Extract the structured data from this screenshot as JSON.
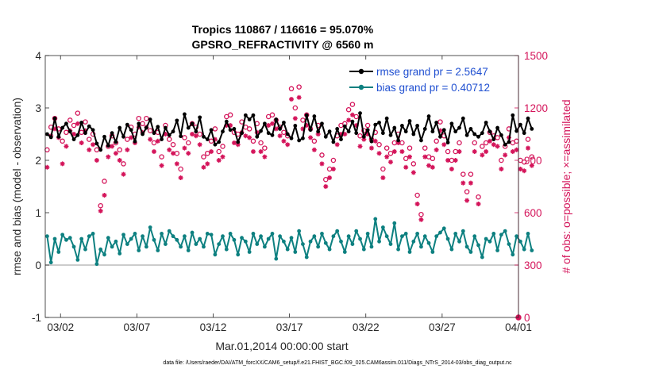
{
  "chart_data": {
    "type": "line",
    "title": "Tropics 110867 / 116616 = 95.070%",
    "subtitle": "GPSRO_REFRACTIVITY @ 6560 m",
    "xlabel": "Mar.01,2014 00:00:00 start",
    "ylabel_left": "rmse and bias (model - observation)",
    "ylabel_right": "# of obs: o=possible; ×=assimilated",
    "footer": "data file: /Users/raeder/DAI/ATM_forcXX/CAM6_setup/f.e21.FHIST_BGC.f09_025.CAM6assim.011/Diags_NTrS_2014-03/obs_diag_output.nc",
    "xlim": [
      0,
      31
    ],
    "ylim_left": [
      -1,
      4
    ],
    "ylim_right": [
      0,
      1500
    ],
    "x_ticks": [
      {
        "value": 1,
        "label": "03/02"
      },
      {
        "value": 6,
        "label": "03/07"
      },
      {
        "value": 11,
        "label": "03/12"
      },
      {
        "value": 16,
        "label": "03/17"
      },
      {
        "value": 21,
        "label": "03/22"
      },
      {
        "value": 26,
        "label": "03/27"
      },
      {
        "value": 31,
        "label": "04/01"
      }
    ],
    "y_ticks_left": [
      -1,
      0,
      1,
      2,
      3,
      4
    ],
    "y_ticks_right": [
      0,
      300,
      600,
      900,
      1200,
      1500
    ],
    "legend": [
      {
        "label": "rmse grand pr = 2.5647",
        "color": "#000000"
      },
      {
        "label": "bias grand pr = 0.40712",
        "color": "#0d8080"
      }
    ],
    "colors": {
      "rmse": "#000000",
      "bias": "#0d8080",
      "obs": "#d4145a",
      "zero_line": "#bbbbbb",
      "legend_text": "#1f4fd1"
    },
    "steps_per_day": 4,
    "series": [
      {
        "name": "rmse",
        "axis": "left",
        "values": [
          2.5,
          2.44,
          2.8,
          2.45,
          2.62,
          2.7,
          2.55,
          2.4,
          2.48,
          2.72,
          2.52,
          2.65,
          2.58,
          2.32,
          2.2,
          2.45,
          2.28,
          2.52,
          2.35,
          2.62,
          2.45,
          2.68,
          2.58,
          2.36,
          2.7,
          2.5,
          2.62,
          2.78,
          2.52,
          2.64,
          2.4,
          2.62,
          2.48,
          2.55,
          2.76,
          2.46,
          2.88,
          2.62,
          2.7,
          2.55,
          2.82,
          2.45,
          2.4,
          2.58,
          2.3,
          2.35,
          2.55,
          2.74,
          2.58,
          2.6,
          2.35,
          2.52,
          2.86,
          2.78,
          2.86,
          2.45,
          2.56,
          2.7,
          2.52,
          2.48,
          2.78,
          2.6,
          2.72,
          2.5,
          2.42,
          2.66,
          2.38,
          2.42,
          2.86,
          2.58,
          2.84,
          2.55,
          2.7,
          2.45,
          2.55,
          2.35,
          2.6,
          2.4,
          2.65,
          2.55,
          2.74,
          2.52,
          2.9,
          2.45,
          2.58,
          2.36,
          2.68,
          2.72,
          2.52,
          2.8,
          2.48,
          2.62,
          2.38,
          2.66,
          2.55,
          2.75,
          2.5,
          2.66,
          2.38,
          2.6,
          2.84,
          2.55,
          2.72,
          2.45,
          2.58,
          2.34,
          2.7,
          2.55,
          2.62,
          2.8,
          2.48,
          2.6,
          2.5,
          2.45,
          2.52,
          2.72,
          2.55,
          2.4,
          2.62,
          2.48,
          2.3,
          2.35,
          2.86,
          2.56,
          2.68,
          2.52,
          2.8,
          2.6
        ]
      },
      {
        "name": "bias",
        "axis": "left",
        "values": [
          0.55,
          0.05,
          0.5,
          0.25,
          0.58,
          0.48,
          0.52,
          0.35,
          0.1,
          0.5,
          0.3,
          0.55,
          0.6,
          0.02,
          0.3,
          0.2,
          0.52,
          0.35,
          0.45,
          0.22,
          0.58,
          0.4,
          0.5,
          0.6,
          0.28,
          0.55,
          0.35,
          0.72,
          0.48,
          0.28,
          0.6,
          0.4,
          0.65,
          0.55,
          0.48,
          0.35,
          0.55,
          0.28,
          0.62,
          0.4,
          0.5,
          0.35,
          0.6,
          0.58,
          0.2,
          0.4,
          0.55,
          0.3,
          0.6,
          0.48,
          0.2,
          0.52,
          0.45,
          0.25,
          0.6,
          0.4,
          0.55,
          0.35,
          0.5,
          0.6,
          0.12,
          0.55,
          0.45,
          0.3,
          0.52,
          0.25,
          0.65,
          0.4,
          0.15,
          0.45,
          0.55,
          0.35,
          0.6,
          0.42,
          0.3,
          0.55,
          0.65,
          0.45,
          0.25,
          0.55,
          0.4,
          0.65,
          0.5,
          0.3,
          0.6,
          0.35,
          0.88,
          0.45,
          0.72,
          0.55,
          0.4,
          0.8,
          0.3,
          0.55,
          0.6,
          0.25,
          0.45,
          0.6,
          0.35,
          0.55,
          0.42,
          0.25,
          0.55,
          0.62,
          0.7,
          0.5,
          0.3,
          0.6,
          0.45,
          0.65,
          0.35,
          0.25,
          0.55,
          0.38,
          0.15,
          0.5,
          0.45,
          0.6,
          0.28,
          0.58,
          0.65,
          0.4,
          0.2,
          0.55,
          0.45,
          0.3,
          0.6,
          0.28
        ]
      },
      {
        "name": "possible obs",
        "axis": "right",
        "marker": "o",
        "values": [
          960,
          1090,
          1140,
          1080,
          1010,
          1060,
          1130,
          1100,
          1170,
          1060,
          1120,
          1020,
          1050,
          960,
          640,
          780,
          980,
          1040,
          1000,
          960,
          880,
          1020,
          1090,
          1050,
          1140,
          1110,
          1140,
          1070,
          1000,
          1060,
          920,
          1100,
          1020,
          990,
          940,
          850,
          1030,
          1000,
          1110,
          1090,
          1050,
          920,
          940,
          1010,
          1080,
          950,
          980,
          1150,
          1160,
          1060,
          1050,
          1120,
          1090,
          1080,
          1010,
          1110,
          1000,
          970,
          1150,
          1160,
          1130,
          1090,
          1060,
          1040,
          1310,
          1200,
          1320,
          1130,
          1160,
          1080,
          1010,
          1100,
          930,
          790,
          850,
          900,
          1040,
          1100,
          1110,
          1190,
          1220,
          1150,
          1040,
          1070,
          1100,
          1020,
          1060,
          990,
          850,
          970,
          940,
          1000,
          1050,
          1000,
          910,
          970,
          880,
          700,
          590,
          970,
          920,
          910,
          1010,
          1120,
          1040,
          950,
          900,
          950,
          1000,
          820,
          720,
          820,
          1000,
          690,
          980,
          1000,
          1060,
          1040,
          1030,
          900,
          980,
          1080,
          1000,
          1010,
          900,
          890,
          1020,
          920
        ]
      },
      {
        "name": "assimilated obs",
        "axis": "right",
        "marker": "*",
        "values": [
          860,
          1040,
          1080,
          1030,
          880,
          980,
          1070,
          1050,
          1110,
          1000,
          1070,
          960,
          990,
          900,
          610,
          700,
          920,
          980,
          940,
          900,
          820,
          960,
          1030,
          1000,
          1090,
          1060,
          1090,
          1020,
          950,
          1010,
          870,
          1050,
          960,
          940,
          880,
          800,
          970,
          940,
          1050,
          1040,
          990,
          860,
          880,
          950,
          1020,
          900,
          920,
          1100,
          1100,
          1000,
          990,
          1060,
          1040,
          1030,
          950,
          1060,
          950,
          920,
          1100,
          1110,
          1080,
          1040,
          1010,
          990,
          1250,
          1140,
          1260,
          1080,
          1100,
          1030,
          960,
          1050,
          880,
          750,
          800,
          850,
          990,
          1050,
          1050,
          1130,
          1160,
          1100,
          980,
          1020,
          1050,
          970,
          1010,
          940,
          800,
          920,
          890,
          950,
          1000,
          950,
          860,
          920,
          830,
          650,
          560,
          920,
          870,
          860,
          960,
          1070,
          990,
          900,
          850,
          900,
          950,
          770,
          670,
          770,
          950,
          650,
          930,
          950,
          1010,
          990,
          980,
          850,
          930,
          1030,
          950,
          960,
          850,
          840,
          970,
          870
        ]
      }
    ]
  }
}
